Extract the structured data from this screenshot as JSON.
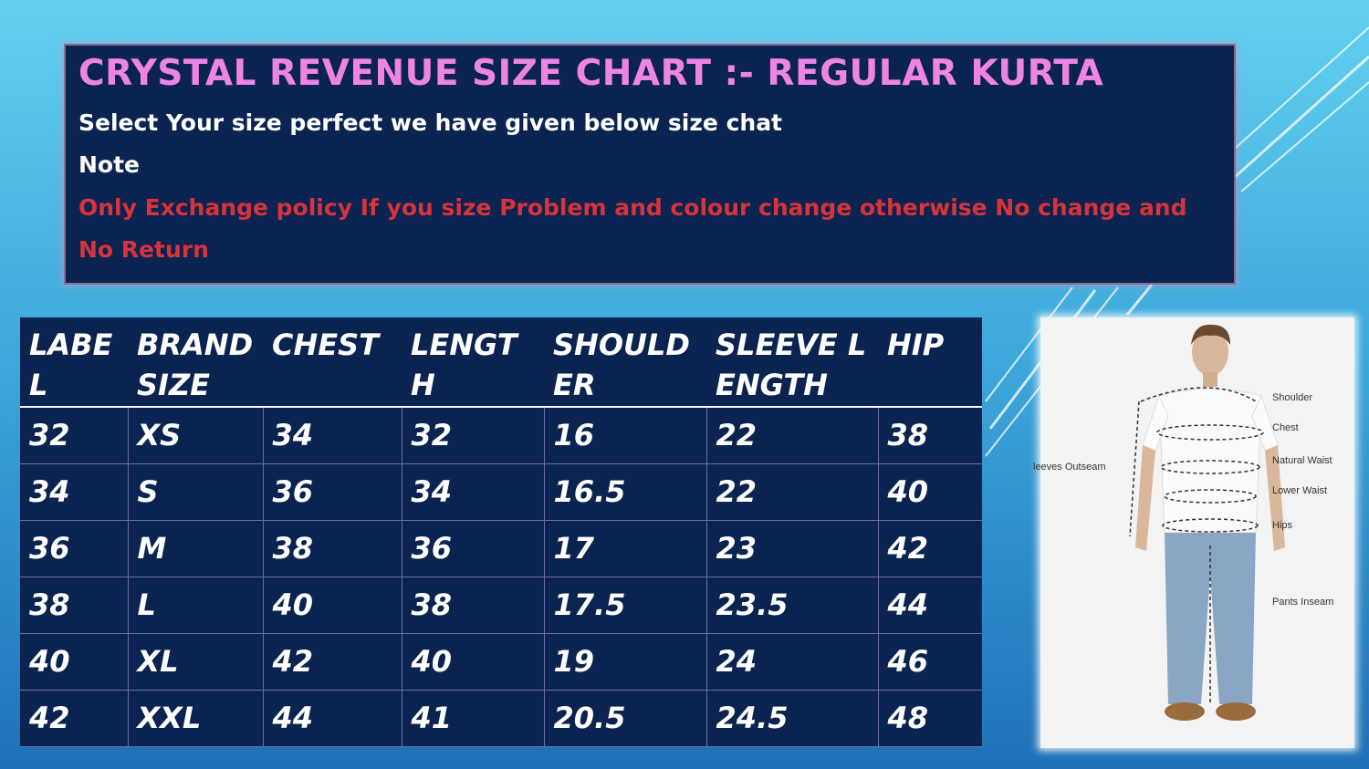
{
  "header": {
    "title": "CRYSTAL REVENUE SIZE CHART :- REGULAR KURTA",
    "subtitle": "Select Your size perfect we have given below size chat",
    "note_label": "Note",
    "policy_line1": "Only Exchange policy If you size Problem and colour change otherwise No change and",
    "policy_line2": "No Return"
  },
  "table": {
    "headers": [
      "LABEL",
      "BRAND SIZE",
      "CHEST",
      "LENGTH",
      "SHOULDER",
      "SLEEVE LENGTH",
      "HIP"
    ],
    "rows": [
      [
        "32",
        "XS",
        "34",
        "32",
        "16",
        "22",
        "38"
      ],
      [
        "34",
        "S",
        "36",
        "34",
        "16.5",
        "22",
        "40"
      ],
      [
        "36",
        "M",
        "38",
        "36",
        "17",
        "23",
        "42"
      ],
      [
        "38",
        "L",
        "40",
        "38",
        "17.5",
        "23.5",
        "44"
      ],
      [
        "40",
        "XL",
        "42",
        "40",
        "19",
        "24",
        "46"
      ],
      [
        "42",
        "XXL",
        "44",
        "41",
        "20.5",
        "24.5",
        "48"
      ]
    ]
  },
  "figure": {
    "labels": {
      "shoulder": "Shoulder",
      "chest": "Chest",
      "natural_waist": "Natural Waist",
      "lower_waist": "Lower Waist",
      "hips": "Hips",
      "pants_inseam": "Pants Inseam",
      "sleeves_outseam": "leeves Outseam"
    }
  },
  "colors": {
    "title": "#ee84e4",
    "policy": "#d7333a",
    "panel": "#0b2350"
  }
}
